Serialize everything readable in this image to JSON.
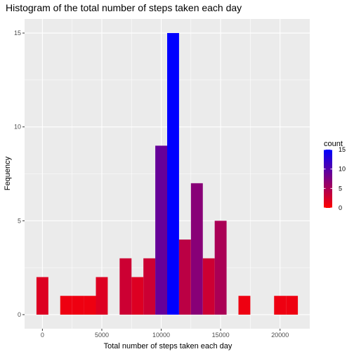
{
  "chart_data": {
    "type": "bar",
    "title": "Histogram of the total number of steps taken each day",
    "xlabel": "Total number of steps taken each day",
    "ylabel": "Fequency",
    "bin_width": 1000,
    "x": [
      0,
      2000,
      3000,
      4000,
      5000,
      7000,
      8000,
      9000,
      10000,
      11000,
      12000,
      13000,
      14000,
      15000,
      17000,
      20000,
      21000
    ],
    "values": [
      2,
      1,
      1,
      1,
      2,
      3,
      2,
      3,
      9,
      15,
      4,
      7,
      3,
      5,
      1,
      1,
      1
    ],
    "xlim": [
      -1500,
      22500
    ],
    "ylim": [
      -0.75,
      15.75
    ],
    "x_ticks": [
      0,
      5000,
      10000,
      15000,
      20000
    ],
    "x_tick_labels": [
      "0",
      "5000",
      "10000",
      "15000",
      "20000"
    ],
    "y_ticks": [
      0,
      5,
      10,
      15
    ],
    "y_tick_labels": [
      "0",
      "5",
      "10",
      "15"
    ],
    "grid": true,
    "panel_background": "#ebebeb",
    "grid_color": "#ffffff",
    "fill_low": "#ff0000",
    "fill_high": "#0000ff",
    "legend": {
      "title": "count",
      "placement": "right",
      "range": [
        0,
        15
      ],
      "ticks": [
        0,
        5,
        10,
        15
      ],
      "tick_labels": [
        "0",
        "5",
        "10",
        "15"
      ]
    }
  }
}
